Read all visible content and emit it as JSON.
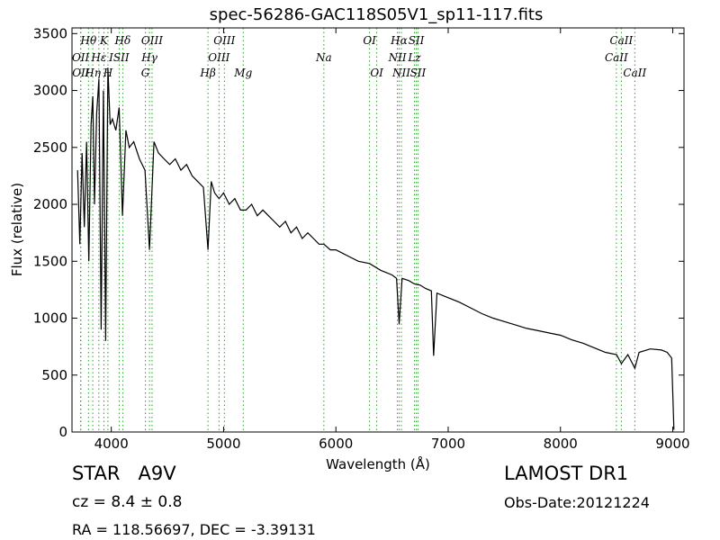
{
  "chart_data": {
    "type": "line",
    "title": "spec-56286-GAC118S05V1_sp11-117.fits",
    "xlabel": "Wavelength (Å)",
    "ylabel": "Flux (relative)",
    "xlim": [
      3650,
      9100
    ],
    "ylim": [
      0,
      3550
    ],
    "xticks": [
      4000,
      5000,
      6000,
      7000,
      8000,
      9000
    ],
    "yticks": [
      0,
      500,
      1000,
      1500,
      2000,
      2500,
      3000,
      3500
    ],
    "grid": false,
    "line_color": "#000000",
    "marker_color": "#2ca02c",
    "spectrum": {
      "x": [
        3700,
        3720,
        3740,
        3760,
        3780,
        3800,
        3820,
        3835,
        3850,
        3870,
        3890,
        3910,
        3930,
        3950,
        3970,
        3990,
        4010,
        4040,
        4070,
        4100,
        4130,
        4160,
        4200,
        4250,
        4300,
        4340,
        4380,
        4420,
        4470,
        4520,
        4570,
        4620,
        4670,
        4720,
        4770,
        4820,
        4861,
        4890,
        4920,
        4960,
        5000,
        5050,
        5100,
        5150,
        5200,
        5250,
        5300,
        5350,
        5400,
        5450,
        5500,
        5550,
        5600,
        5650,
        5700,
        5750,
        5800,
        5850,
        5893,
        5950,
        6000,
        6100,
        6200,
        6300,
        6400,
        6450,
        6500,
        6540,
        6563,
        6590,
        6650,
        6700,
        6750,
        6800,
        6850,
        6870,
        6900,
        7000,
        7100,
        7200,
        7300,
        7400,
        7500,
        7600,
        7700,
        7800,
        7900,
        8000,
        8100,
        8200,
        8300,
        8400,
        8500,
        8542,
        8600,
        8662,
        8700,
        8800,
        8900,
        8950,
        8990,
        9010
      ],
      "y": [
        2300,
        1650,
        2450,
        1800,
        2550,
        1500,
        2700,
        2950,
        2000,
        2800,
        3100,
        900,
        3000,
        800,
        3200,
        2700,
        2750,
        2650,
        2850,
        1900,
        2650,
        2500,
        2550,
        2400,
        2300,
        1600,
        2550,
        2450,
        2400,
        2350,
        2400,
        2300,
        2350,
        2250,
        2200,
        2150,
        1600,
        2200,
        2100,
        2050,
        2100,
        2000,
        2050,
        1950,
        1950,
        2000,
        1900,
        1950,
        1900,
        1850,
        1800,
        1850,
        1750,
        1800,
        1700,
        1750,
        1700,
        1650,
        1650,
        1600,
        1600,
        1550,
        1500,
        1480,
        1420,
        1400,
        1380,
        1350,
        950,
        1350,
        1330,
        1300,
        1290,
        1260,
        1240,
        670,
        1220,
        1180,
        1140,
        1090,
        1040,
        1000,
        970,
        940,
        910,
        890,
        870,
        850,
        810,
        780,
        740,
        700,
        680,
        600,
        680,
        560,
        700,
        730,
        720,
        700,
        650,
        20
      ]
    },
    "lines": [
      {
        "label": "Hθ",
        "x": 3797,
        "row": 0
      },
      {
        "label": "K",
        "x": 3934,
        "row": 0
      },
      {
        "label": "Hδ",
        "x": 4102,
        "row": 0
      },
      {
        "label": "OIII",
        "x": 4363,
        "row": 0
      },
      {
        "label": "OIII",
        "x": 5007,
        "row": 0
      },
      {
        "label": "OI",
        "x": 6300,
        "row": 0
      },
      {
        "label": "Hα",
        "x": 6563,
        "row": 0
      },
      {
        "label": "SII",
        "x": 6716,
        "row": 0
      },
      {
        "label": "CaII",
        "x": 8542,
        "row": 0
      },
      {
        "label": "OII",
        "x": 3727,
        "row": 1
      },
      {
        "label": "Hε",
        "x": 3889,
        "row": 1
      },
      {
        "label": "ISII",
        "x": 4070,
        "row": 1
      },
      {
        "label": "Hγ",
        "x": 4340,
        "row": 1
      },
      {
        "label": "OIII",
        "x": 4959,
        "row": 1
      },
      {
        "label": "Na",
        "x": 5893,
        "row": 1
      },
      {
        "label": "NII",
        "x": 6548,
        "row": 1
      },
      {
        "label": "CaII",
        "x": 8498,
        "row": 1
      },
      {
        "label": "OII",
        "x": 3729,
        "row": 2
      },
      {
        "label": "Hη",
        "x": 3835,
        "row": 2
      },
      {
        "label": "H",
        "x": 3970,
        "row": 2
      },
      {
        "label": "G",
        "x": 4304,
        "row": 2
      },
      {
        "label": "Hβ",
        "x": 4861,
        "row": 2
      },
      {
        "label": "Mg",
        "x": 5175,
        "row": 2
      },
      {
        "label": "OI",
        "x": 6364,
        "row": 2
      },
      {
        "label": "NII",
        "x": 6583,
        "row": 2
      },
      {
        "label": "SII",
        "x": 6731,
        "row": 2
      },
      {
        "label": "CaII",
        "x": 8662,
        "row": 2
      },
      {
        "label": "Lz",
        "x": 6700,
        "row": 1
      }
    ]
  },
  "info": {
    "object_class": "STAR",
    "subclass": "A9V",
    "survey": "LAMOST DR1",
    "cz": "cz = 8.4 ± 0.8",
    "obs_date": "Obs-Date:20121224",
    "coords": "RA = 118.56697, DEC = -3.39131"
  }
}
